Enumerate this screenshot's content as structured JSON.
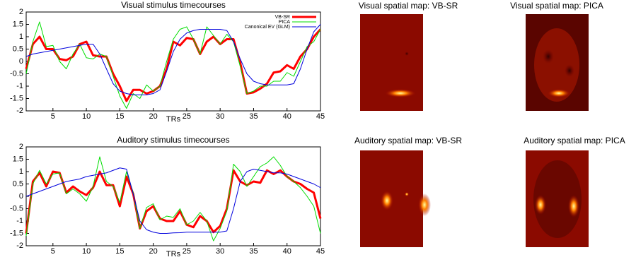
{
  "chart_data": [
    {
      "type": "line",
      "title": "Visual stimulus timecourses",
      "xlabel": "TRs",
      "x": [
        1,
        2,
        3,
        4,
        5,
        6,
        7,
        8,
        9,
        10,
        11,
        12,
        13,
        14,
        15,
        16,
        17,
        18,
        19,
        20,
        21,
        22,
        23,
        24,
        25,
        26,
        27,
        28,
        29,
        30,
        31,
        32,
        33,
        34,
        35,
        36,
        37,
        38,
        39,
        40,
        41,
        42,
        43,
        44,
        45
      ],
      "xlim": [
        1,
        45
      ],
      "xticks": [
        5,
        10,
        15,
        20,
        25,
        30,
        35,
        40,
        45
      ],
      "ylim": [
        -2,
        2
      ],
      "yticks": [
        -2,
        -1.5,
        -1,
        -0.5,
        0,
        0.5,
        1,
        1.5,
        2
      ],
      "legend": "upper right",
      "series": [
        {
          "name": "VB-SR",
          "color": "#ff0000",
          "linewidth": 3,
          "values": [
            -0.3,
            0.7,
            1.0,
            0.5,
            0.5,
            0.1,
            0.05,
            0.2,
            0.7,
            0.8,
            0.25,
            0.2,
            0.2,
            -0.5,
            -1.0,
            -1.6,
            -1.15,
            -1.15,
            -1.3,
            -1.2,
            -1.0,
            -0.3,
            0.8,
            0.65,
            0.95,
            0.9,
            0.3,
            0.8,
            1.0,
            0.7,
            0.9,
            0.9,
            -0.05,
            -1.3,
            -1.25,
            -1.1,
            -0.9,
            -0.45,
            -0.4,
            -0.15,
            -0.3,
            0.2,
            0.5,
            1.0,
            1.3
          ]
        },
        {
          "name": "PICA",
          "color": "#00dd00",
          "linewidth": 1,
          "values": [
            -0.5,
            0.8,
            1.6,
            0.6,
            0.65,
            0.0,
            -0.3,
            0.3,
            0.7,
            0.15,
            0.1,
            0.3,
            0.2,
            -0.6,
            -1.4,
            -1.9,
            -1.3,
            -1.5,
            -0.95,
            -1.2,
            -1.0,
            0.0,
            0.9,
            1.3,
            1.4,
            0.9,
            0.3,
            1.4,
            1.05,
            0.7,
            1.1,
            0.8,
            -0.2,
            -1.3,
            -1.2,
            -1.0,
            -1.0,
            -0.8,
            -0.8,
            -0.45,
            -0.6,
            0.0,
            0.6,
            0.8,
            1.3
          ]
        },
        {
          "name": "Canonical EV (GLM)",
          "color": "#0000dd",
          "linewidth": 1,
          "values": [
            0.2,
            0.3,
            0.35,
            0.4,
            0.45,
            0.5,
            0.55,
            0.6,
            0.65,
            0.7,
            0.7,
            0.3,
            -0.3,
            -0.9,
            -1.2,
            -1.3,
            -1.35,
            -1.35,
            -1.35,
            -1.3,
            -1.15,
            -0.4,
            0.4,
            0.9,
            1.15,
            1.25,
            1.3,
            1.3,
            1.3,
            1.3,
            1.25,
            0.8,
            0.1,
            -0.5,
            -0.8,
            -0.9,
            -0.95,
            -0.95,
            -0.95,
            -0.95,
            -0.9,
            -0.3,
            0.5,
            1.2,
            1.5
          ]
        }
      ]
    },
    {
      "type": "line",
      "title": "Auditory stimulus timecourses",
      "xlabel": "TRs",
      "x": [
        1,
        2,
        3,
        4,
        5,
        6,
        7,
        8,
        9,
        10,
        11,
        12,
        13,
        14,
        15,
        16,
        17,
        18,
        19,
        20,
        21,
        22,
        23,
        24,
        25,
        26,
        27,
        28,
        29,
        30,
        31,
        32,
        33,
        34,
        35,
        36,
        37,
        38,
        39,
        40,
        41,
        42,
        43,
        44,
        45
      ],
      "xlim": [
        1,
        45
      ],
      "xticks": [
        5,
        10,
        15,
        20,
        25,
        30,
        35,
        40,
        45
      ],
      "ylim": [
        -2,
        2
      ],
      "yticks": [
        -2,
        -1.5,
        -1,
        -0.5,
        0,
        0.5,
        1,
        1.5,
        2
      ],
      "series": [
        {
          "color": "#ff0000",
          "linewidth": 3,
          "values": [
            -1.5,
            0.6,
            0.95,
            0.4,
            1.0,
            0.95,
            0.15,
            0.4,
            0.2,
            0.05,
            0.35,
            1.0,
            0.45,
            0.45,
            -0.4,
            0.8,
            0.1,
            -1.3,
            -0.6,
            -0.4,
            -0.9,
            -1.0,
            -1.0,
            -0.6,
            -1.15,
            -1.25,
            -0.8,
            -1.0,
            -1.45,
            -1.2,
            -0.5,
            1.05,
            0.6,
            0.45,
            0.6,
            0.55,
            1.05,
            0.9,
            1.05,
            0.8,
            0.6,
            0.5,
            0.3,
            0.15,
            -0.9
          ]
        },
        {
          "color": "#00dd00",
          "linewidth": 1,
          "values": [
            -1.6,
            0.5,
            1.05,
            0.5,
            0.9,
            0.95,
            0.1,
            0.3,
            0.1,
            -0.2,
            0.4,
            1.6,
            0.6,
            0.4,
            -0.25,
            1.0,
            0.15,
            -1.3,
            -0.45,
            -0.3,
            -0.95,
            -0.8,
            -0.85,
            -0.5,
            -1.15,
            -1.0,
            -0.65,
            -1.0,
            -1.8,
            -1.3,
            -0.6,
            1.3,
            1.0,
            0.4,
            0.8,
            1.2,
            1.35,
            1.6,
            1.25,
            0.8,
            0.6,
            0.35,
            0.0,
            -0.4,
            -1.5
          ]
        },
        {
          "color": "#0000dd",
          "linewidth": 1,
          "values": [
            0,
            0.1,
            0.2,
            0.3,
            0.4,
            0.5,
            0.6,
            0.65,
            0.7,
            0.8,
            0.85,
            0.9,
            0.95,
            1.05,
            1.15,
            1.1,
            0.1,
            -1.0,
            -1.35,
            -1.45,
            -1.5,
            -1.5,
            -1.48,
            -1.47,
            -1.45,
            -1.45,
            -1.45,
            -1.45,
            -1.45,
            -1.45,
            -1.4,
            -0.5,
            0.6,
            1.0,
            1.1,
            1.05,
            1.0,
            0.95,
            0.95,
            0.9,
            0.8,
            0.7,
            0.6,
            0.5,
            0.35
          ]
        }
      ]
    }
  ],
  "maps": [
    {
      "title": "Visual spatial map: VB-SR"
    },
    {
      "title": "Visual spatial map: PICA"
    },
    {
      "title": "Auditory spatial map: VB-SR"
    },
    {
      "title": "Auditory spatial map: PICA"
    }
  ]
}
